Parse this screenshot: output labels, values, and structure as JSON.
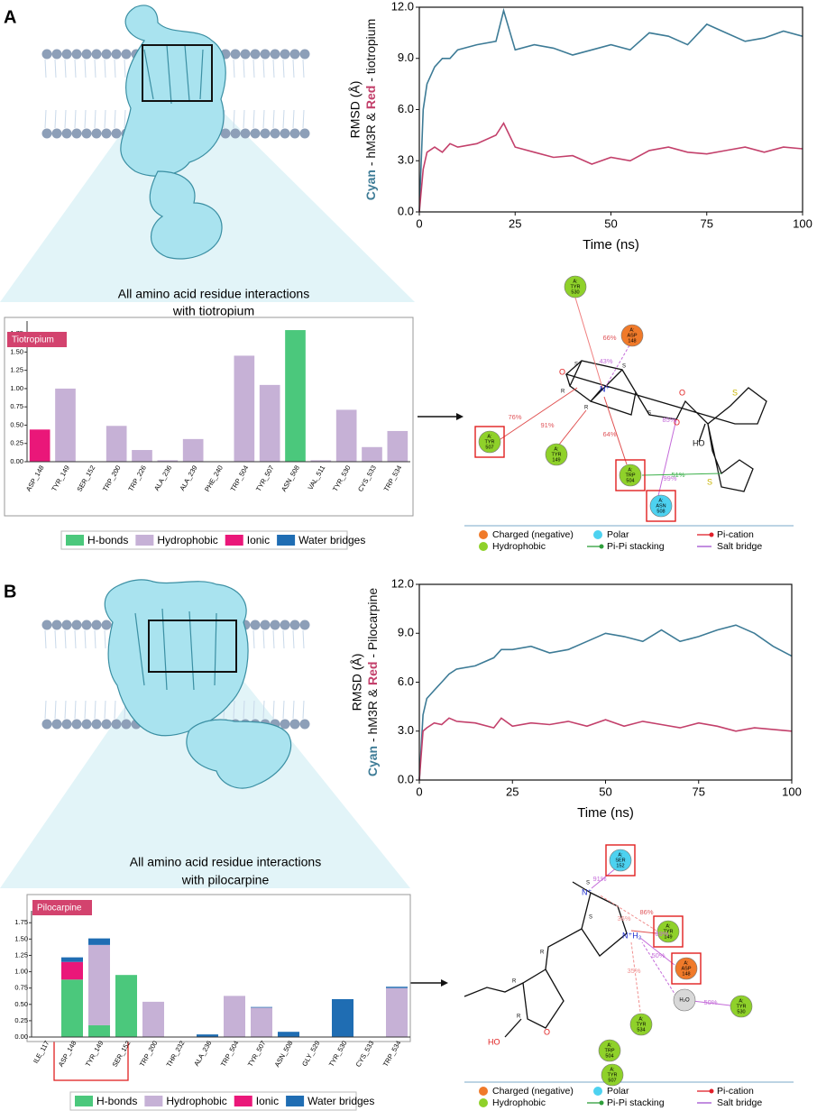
{
  "panel_a": {
    "label": "A",
    "caption": [
      "All amino acid residue interactions",
      "with tiotropium"
    ]
  },
  "panel_b": {
    "label": "B",
    "caption": [
      "All amino acid residue interactions",
      "with pilocarpine"
    ]
  },
  "chart_data": [
    {
      "type": "line",
      "xlabel": "Time (ns)",
      "ylabel": "RMSD (Å)",
      "ylabel_parts": [
        "Cyan",
        " - hM3R & ",
        "Red",
        " - tiotropium"
      ],
      "xlim": [
        0,
        100
      ],
      "ylim": [
        0,
        12
      ],
      "xticks": [
        0,
        25,
        50,
        75,
        100
      ],
      "yticks": [
        {
          "value": 0,
          "label": "0.0"
        },
        {
          "value": 3,
          "label": "3.0"
        },
        {
          "value": 6,
          "label": "6.0"
        },
        {
          "value": 9,
          "label": "9.0"
        },
        {
          "value": 12,
          "label": "12.0"
        }
      ],
      "x": [
        0,
        1,
        2,
        4,
        6,
        8,
        10,
        15,
        20,
        22,
        25,
        30,
        35,
        40,
        45,
        50,
        55,
        60,
        65,
        70,
        75,
        80,
        85,
        90,
        95,
        100
      ],
      "series": [
        {
          "name": "Cyan",
          "color": "#3d7b96",
          "values": [
            0,
            6,
            7.5,
            8.5,
            9,
            9,
            9.5,
            9.8,
            10,
            11.8,
            9.5,
            9.8,
            9.6,
            9.2,
            9.5,
            9.8,
            9.5,
            10.5,
            10.3,
            9.8,
            11,
            10.5,
            10,
            10.2,
            10.6,
            10.3
          ]
        },
        {
          "name": "Red",
          "color": "#c3406b",
          "values": [
            0,
            2.5,
            3.5,
            3.8,
            3.5,
            4,
            3.8,
            4,
            4.5,
            5.2,
            3.8,
            3.5,
            3.2,
            3.3,
            2.8,
            3.2,
            3,
            3.6,
            3.8,
            3.5,
            3.4,
            3.6,
            3.8,
            3.5,
            3.8,
            3.7
          ]
        }
      ]
    },
    {
      "type": "bar",
      "badge": "Tiotropium",
      "stacked": true,
      "categories": [
        "ASP_148",
        "TYR_149",
        "SER_152",
        "TRP_200",
        "TRP_226",
        "ALA_236",
        "ALA_239",
        "PHE_240",
        "TRP_504",
        "TYR_507",
        "ASN_508",
        "VAL_511",
        "TYR_530",
        "CYS_533",
        "TRP_534"
      ],
      "ylim": [
        0,
        1.85
      ],
      "yticks": [
        {
          "value": 0,
          "label": "0.00"
        },
        {
          "value": 0.25,
          "label": "0.25"
        },
        {
          "value": 0.5,
          "label": "0.50"
        },
        {
          "value": 0.75,
          "label": "0.75"
        },
        {
          "value": 1,
          "label": "1.00"
        },
        {
          "value": 1.25,
          "label": "1.25"
        },
        {
          "value": 1.5,
          "label": "1.50"
        },
        {
          "value": 1.75,
          "label": "1.75"
        }
      ],
      "series": [
        {
          "name": "H-bonds",
          "color": "#4bc87c",
          "values": [
            0,
            0,
            0,
            0,
            0,
            0,
            0,
            0,
            0,
            0,
            1.8,
            0,
            0,
            0,
            0
          ]
        },
        {
          "name": "Hydrophobic",
          "color": "#c6b1d6",
          "values": [
            0,
            1.0,
            0,
            0.49,
            0.16,
            0.02,
            0.31,
            0,
            1.45,
            1.05,
            0,
            0.02,
            0.71,
            0.2,
            0.42
          ]
        },
        {
          "name": "Ionic",
          "color": "#ea1779",
          "values": [
            0.44,
            0,
            0,
            0,
            0,
            0,
            0,
            0,
            0,
            0,
            0,
            0,
            0,
            0,
            0
          ]
        },
        {
          "name": "Water bridges",
          "color": "#1f6db3",
          "values": [
            0,
            0,
            0,
            0,
            0,
            0,
            0,
            0,
            0,
            0,
            0,
            0,
            0,
            0,
            0
          ]
        }
      ]
    },
    {
      "type": "line",
      "xlabel": "Time (ns)",
      "ylabel": "RMSD (Å)",
      "ylabel_parts": [
        "Cyan",
        " - hM3R & ",
        "Red",
        " - Pilocarpine"
      ],
      "xlim": [
        0,
        100
      ],
      "ylim": [
        0,
        12
      ],
      "xticks": [
        0,
        25,
        50,
        75,
        100
      ],
      "yticks": [
        {
          "value": 0,
          "label": "0.0"
        },
        {
          "value": 3,
          "label": "3.0"
        },
        {
          "value": 6,
          "label": "6.0"
        },
        {
          "value": 9,
          "label": "9.0"
        },
        {
          "value": 12,
          "label": "12.0"
        }
      ],
      "x": [
        0,
        1,
        2,
        4,
        6,
        8,
        10,
        15,
        20,
        22,
        25,
        30,
        35,
        40,
        45,
        50,
        55,
        60,
        65,
        70,
        75,
        80,
        85,
        90,
        95,
        100
      ],
      "series": [
        {
          "name": "Cyan",
          "color": "#3d7b96",
          "values": [
            0,
            4,
            5,
            5.5,
            6,
            6.5,
            6.8,
            7,
            7.5,
            8,
            8,
            8.2,
            7.8,
            8,
            8.5,
            9,
            8.8,
            8.5,
            9.2,
            8.5,
            8.8,
            9.2,
            9.5,
            9,
            8.2,
            7.6
          ]
        },
        {
          "name": "Red",
          "color": "#c3406b",
          "values": [
            0,
            3,
            3.2,
            3.5,
            3.4,
            3.8,
            3.6,
            3.5,
            3.2,
            3.8,
            3.3,
            3.5,
            3.4,
            3.6,
            3.3,
            3.7,
            3.3,
            3.6,
            3.4,
            3.2,
            3.5,
            3.3,
            3,
            3.2,
            3.1,
            3
          ]
        }
      ]
    },
    {
      "type": "bar",
      "badge": "Pilocarpine",
      "stacked": true,
      "categories": [
        "ILE_117",
        "ASP_148",
        "TYR_149",
        "SER_152",
        "TRP_200",
        "THR_232",
        "ALA_236",
        "TRP_504",
        "TYR_507",
        "ASN_508",
        "GLY_529",
        "TYR_530",
        "CYS_533",
        "TRP_534"
      ],
      "ylim": [
        0,
        1.85
      ],
      "yticks": [
        {
          "value": 0,
          "label": "0.00"
        },
        {
          "value": 0.25,
          "label": "0.25"
        },
        {
          "value": 0.5,
          "label": "0.50"
        },
        {
          "value": 0.75,
          "label": "0.75"
        },
        {
          "value": 1,
          "label": "1.00"
        },
        {
          "value": 1.25,
          "label": "1.25"
        },
        {
          "value": 1.5,
          "label": "1.50"
        },
        {
          "value": 1.75,
          "label": "1.75"
        }
      ],
      "series": [
        {
          "name": "H-bonds",
          "color": "#4bc87c",
          "values": [
            0,
            0.88,
            0.18,
            0.95,
            0,
            0,
            0,
            0,
            0,
            0,
            0,
            0,
            0,
            0
          ]
        },
        {
          "name": "Hydrophobic",
          "color": "#c6b1d6",
          "values": [
            0,
            0,
            1.23,
            0,
            0.54,
            0,
            0,
            0.63,
            0.45,
            0,
            0,
            0,
            0,
            0.75
          ]
        },
        {
          "name": "Ionic",
          "color": "#ea1779",
          "values": [
            0,
            0.27,
            0,
            0,
            0,
            0,
            0,
            0,
            0,
            0,
            0,
            0,
            0,
            0
          ]
        },
        {
          "name": "Water bridges",
          "color": "#1f6db3",
          "values": [
            0,
            0.07,
            0.1,
            0,
            0,
            0,
            0.04,
            0,
            0.01,
            0.08,
            0,
            0.58,
            0,
            0.02
          ]
        }
      ]
    }
  ],
  "diagram_a": {
    "nodes": [
      {
        "chain": "A:",
        "residue": "TYR",
        "number": "530",
        "color": "#8fd12a"
      },
      {
        "chain": "A:",
        "residue": "ASP",
        "number": "148",
        "color": "#f07a2a"
      },
      {
        "chain": "A:",
        "residue": "TYR",
        "number": "507",
        "color": "#8fd12a",
        "highlighted": true
      },
      {
        "chain": "A:",
        "residue": "TYR",
        "number": "149",
        "color": "#8fd12a"
      },
      {
        "chain": "A:",
        "residue": "TRP",
        "number": "504",
        "color": "#8fd12a",
        "highlighted": true
      },
      {
        "chain": "A:",
        "residue": "ASN",
        "number": "508",
        "color": "#4dd2f0",
        "highlighted": true
      }
    ],
    "percents": [
      {
        "text": "66%",
        "color": "#e0555a"
      },
      {
        "text": "43%",
        "color": "#c46bd9"
      },
      {
        "text": "76%",
        "color": "#e0555a"
      },
      {
        "text": "91%",
        "color": "#e0555a"
      },
      {
        "text": "64%",
        "color": "#e0555a"
      },
      {
        "text": "85%",
        "color": "#c46bd9"
      },
      {
        "text": "51%",
        "color": "#3bb04a"
      },
      {
        "text": "99%",
        "color": "#c46bd9"
      }
    ],
    "atoms": [
      "O",
      "S",
      "S",
      "R",
      "R",
      "N⁺",
      "O",
      "O",
      "HO",
      "S",
      "S",
      "S"
    ],
    "legend": [
      {
        "label": "Charged (negative)",
        "color": "#f07a2a",
        "marker": "circle"
      },
      {
        "label": "Polar",
        "color": "#4dd2f0",
        "marker": "circle"
      },
      {
        "label": "Pi-cation",
        "color": "#e0202a",
        "marker": "line-dot"
      },
      {
        "label": "Hydrophobic",
        "color": "#8fd12a",
        "marker": "circle"
      },
      {
        "label": "Pi-Pi stacking",
        "color": "#2e9e3a",
        "marker": "line-dot"
      },
      {
        "label": "Salt bridge",
        "color": "#a050d0",
        "marker": "line"
      }
    ]
  },
  "diagram_b": {
    "nodes": [
      {
        "chain": "A:",
        "residue": "SER",
        "number": "152",
        "color": "#4dd2f0",
        "highlighted": true
      },
      {
        "chain": "A:",
        "residue": "TYR",
        "number": "149",
        "color": "#8fd12a",
        "highlighted": true
      },
      {
        "chain": "A:",
        "residue": "ASP",
        "number": "148",
        "color": "#f07a2a",
        "highlighted": true
      },
      {
        "chain": "",
        "residue": "H₂O",
        "number": "",
        "color": "#d8d8d8"
      },
      {
        "chain": "A:",
        "residue": "TYR",
        "number": "530",
        "color": "#8fd12a"
      },
      {
        "chain": "A:",
        "residue": "TYR",
        "number": "534",
        "color": "#8fd12a"
      },
      {
        "chain": "A:",
        "residue": "TRP",
        "number": "504",
        "color": "#8fd12a"
      },
      {
        "chain": "A:",
        "residue": "TYR",
        "number": "507",
        "color": "#8fd12a"
      }
    ],
    "percents": [
      {
        "text": "91%",
        "color": "#c46bd9"
      },
      {
        "text": "36%",
        "color": "#f09090"
      },
      {
        "text": "86%",
        "color": "#e0555a"
      },
      {
        "text": "89%",
        "color": "#c46bd9"
      },
      {
        "text": "50%",
        "color": "#c46bd9"
      },
      {
        "text": "50%",
        "color": "#c46bd9"
      },
      {
        "text": "35%",
        "color": "#f09090"
      }
    ],
    "atoms": [
      "N⁺",
      "S",
      "S",
      "N⁺H₂",
      "R",
      "R",
      "R",
      "O",
      "HO"
    ],
    "legend": [
      {
        "label": "Charged (negative)",
        "color": "#f07a2a",
        "marker": "circle"
      },
      {
        "label": "Polar",
        "color": "#4dd2f0",
        "marker": "circle"
      },
      {
        "label": "Pi-cation",
        "color": "#e0202a",
        "marker": "line-dot"
      },
      {
        "label": "Hydrophobic",
        "color": "#8fd12a",
        "marker": "circle"
      },
      {
        "label": "Pi-Pi stacking",
        "color": "#2e9e3a",
        "marker": "line-dot"
      },
      {
        "label": "Salt bridge",
        "color": "#a050d0",
        "marker": "line"
      }
    ]
  }
}
